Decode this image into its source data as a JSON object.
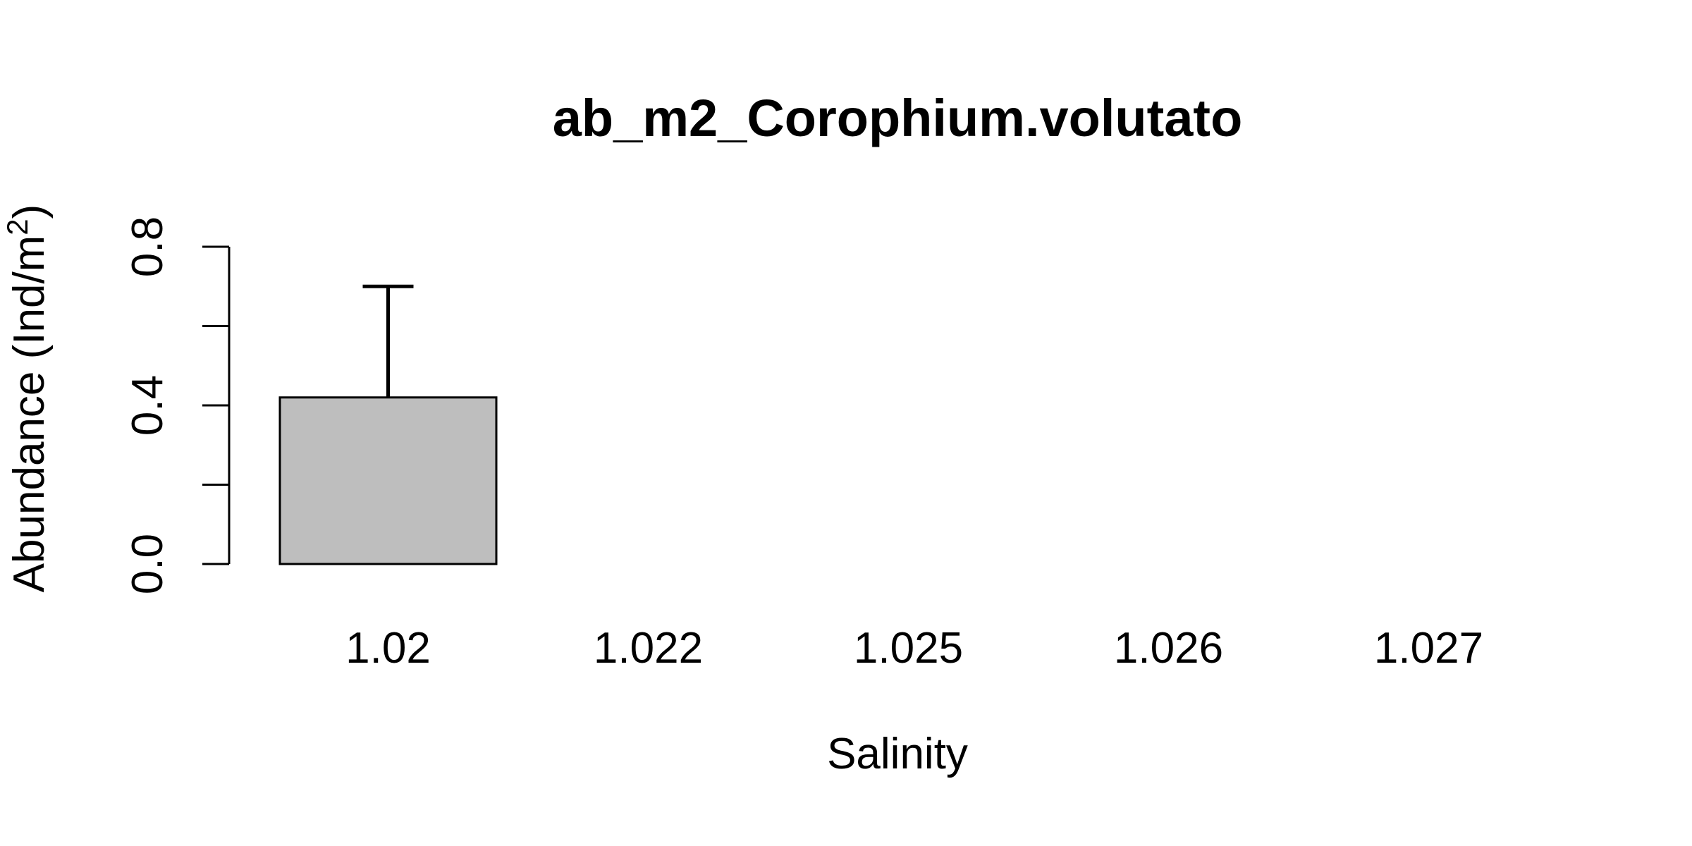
{
  "chart_data": {
    "type": "bar",
    "title": "ab_m2_Corophium.volutato",
    "xlabel": "Salinity",
    "ylabel": "Abundance (Ind/m",
    "ylabel_superscript": "2",
    "ylabel_suffix": ")",
    "categories": [
      "1.02",
      "1.022",
      "1.025",
      "1.026",
      "1.027"
    ],
    "values": [
      0.42,
      0,
      0,
      0,
      0
    ],
    "error_upper": [
      0.7,
      0,
      0,
      0,
      0
    ],
    "ylim": [
      0,
      0.8
    ],
    "yticks": [
      0,
      0.2,
      0.4,
      0.6,
      0.8
    ],
    "ytick_labels": [
      "0.0",
      "",
      "0.4",
      "",
      "0.8"
    ],
    "bar_color": "#bebebe",
    "grid": false
  }
}
